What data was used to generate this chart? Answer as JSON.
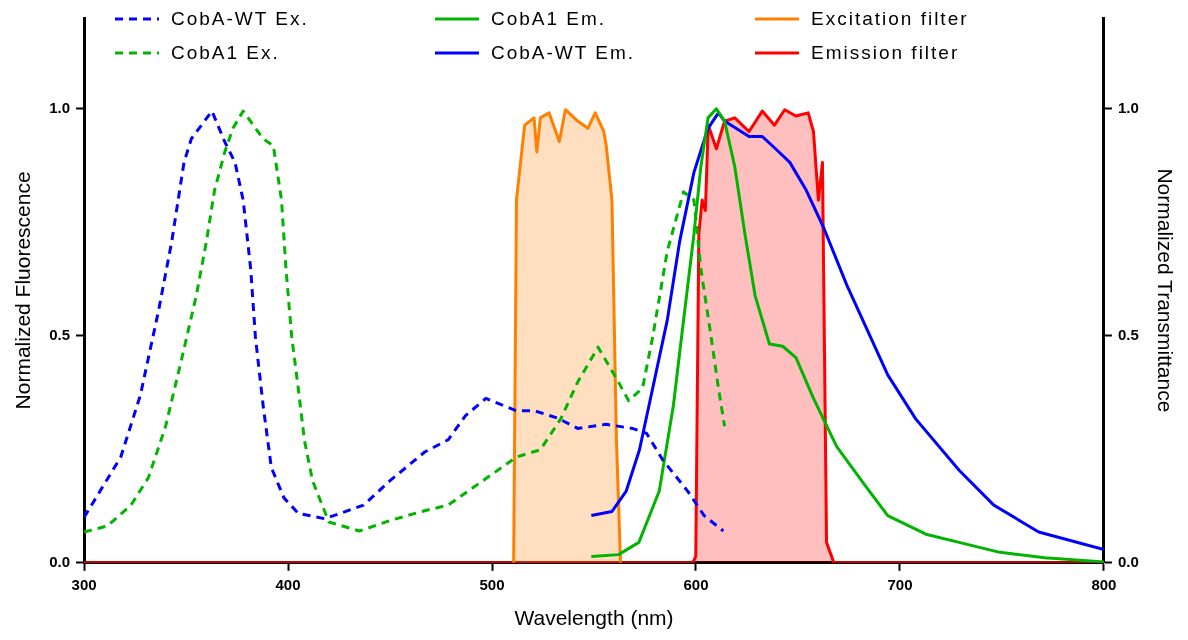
{
  "chart_data": {
    "type": "line",
    "xlabel": "Wavelength (nm)",
    "ylabel": "Normalized Fluorescence",
    "y2label": "Normalized Transmittance",
    "xlim": [
      300,
      800
    ],
    "xticks": [
      300,
      400,
      500,
      600,
      700,
      800
    ],
    "ylim": [
      0,
      1.2
    ],
    "yticks": [
      {
        "value": 0,
        "label": "0.0"
      },
      0.5,
      {
        "value": 1,
        "label": "1.0"
      }
    ],
    "y2lim": [
      0,
      1.2
    ],
    "y2ticks": [
      {
        "value": 0,
        "label": "0.0"
      },
      0.5,
      {
        "value": 1,
        "label": "1.0"
      }
    ],
    "grid": false,
    "legend": "top",
    "marker": "none",
    "series": [
      {
        "name": "CobA-WT Ex.",
        "color": "#0000ff",
        "line_style": "dashed",
        "x": [
          300,
          318,
          327.6,
          336.6,
          343,
          349,
          352.6,
          362.7,
          369,
          374,
          378,
          381.7,
          384,
          387.8,
          391.8,
          398,
          405,
          418,
          437,
          450,
          467,
          478.5,
          487,
          497,
          512,
          520.6,
          532,
          542,
          555.8,
          568.8,
          575.8,
          583.8,
          595.9,
          604,
          613.4
        ],
        "values": [
          0.1,
          0.233,
          0.369,
          0.557,
          0.708,
          0.882,
          0.934,
          0.995,
          0.927,
          0.882,
          0.799,
          0.647,
          0.498,
          0.346,
          0.21,
          0.143,
          0.109,
          0.097,
          0.127,
          0.181,
          0.244,
          0.271,
          0.324,
          0.362,
          0.335,
          0.335,
          0.319,
          0.296,
          0.305,
          0.296,
          0.285,
          0.226,
          0.158,
          0.104,
          0.07
        ]
      },
      {
        "name": "CobA1 Em.",
        "color": "#00b400",
        "line_style": "solid",
        "x": [
          548.7,
          562,
          572,
          582,
          588.9,
          593.9,
          599,
          602.4,
          605.9,
          610,
          614,
          619,
          624,
          629,
          636,
          642.5,
          649,
          657.6,
          669,
          682.6,
          694,
          712.7,
          729,
          749,
          771,
          800
        ],
        "values": [
          0.014,
          0.018,
          0.045,
          0.158,
          0.346,
          0.534,
          0.724,
          0.873,
          0.98,
          1.0,
          0.973,
          0.873,
          0.724,
          0.588,
          0.482,
          0.477,
          0.452,
          0.362,
          0.256,
          0.172,
          0.104,
          0.063,
          0.045,
          0.023,
          0.011,
          0.002
        ]
      },
      {
        "name": "Excitation filter",
        "type": "area",
        "color": "#ff8000",
        "line_style": "solid",
        "x": [
          510.6,
          512,
          516,
          520.6,
          522,
          523.7,
          528,
          533,
          536,
          542,
          547,
          550.6,
          554.8,
          556,
          558.8,
          561,
          563
        ],
        "values": [
          0,
          0.8,
          0.964,
          0.98,
          0.905,
          0.98,
          0.991,
          0.928,
          0.998,
          0.973,
          0.957,
          0.991,
          0.95,
          0.919,
          0.799,
          0.271,
          0
        ]
      },
      {
        "name": "CobA1 Ex.",
        "color": "#00b400",
        "line_style": "dashed",
        "x": [
          300,
          311.5,
          323,
          331.6,
          340,
          348,
          355,
          360,
          364,
          369,
          373,
          378,
          387.8,
          392.8,
          396.8,
          399,
          401.8,
          405,
          408,
          412,
          420,
          435,
          450,
          465.5,
          478.5,
          495.6,
          512,
          523.7,
          533.7,
          542,
          552,
          562,
          567,
          573.8,
          578.8,
          585.9,
          593.9,
          599,
          602.4,
          607.4,
          611,
          614
        ],
        "values": [
          0.068,
          0.081,
          0.127,
          0.188,
          0.301,
          0.452,
          0.588,
          0.708,
          0.821,
          0.905,
          0.957,
          0.995,
          0.934,
          0.919,
          0.799,
          0.647,
          0.498,
          0.385,
          0.271,
          0.181,
          0.09,
          0.07,
          0.093,
          0.113,
          0.127,
          0.181,
          0.233,
          0.249,
          0.317,
          0.398,
          0.475,
          0.398,
          0.357,
          0.385,
          0.498,
          0.686,
          0.817,
          0.799,
          0.647,
          0.498,
          0.385,
          0.301
        ]
      },
      {
        "name": "CobA-WT Em.",
        "color": "#0000ff",
        "line_style": "solid",
        "x": [
          548.7,
          558.8,
          565.8,
          572.3,
          578.8,
          585.9,
          592,
          599,
          605.9,
          611,
          614,
          626,
          632.5,
          639,
          646,
          654,
          662.6,
          674,
          694,
          707.7,
          729,
          746,
          768,
          800
        ],
        "values": [
          0.104,
          0.113,
          0.158,
          0.249,
          0.385,
          0.534,
          0.708,
          0.86,
          0.957,
          0.991,
          0.973,
          0.939,
          0.939,
          0.912,
          0.882,
          0.821,
          0.738,
          0.611,
          0.414,
          0.317,
          0.204,
          0.127,
          0.068,
          0.029
        ]
      },
      {
        "name": "Emission filter",
        "type": "area",
        "color": "#ff0000",
        "line_style": "solid",
        "x": [
          300,
          598.4,
          599.9,
          601.4,
          603,
          604.6,
          606,
          610,
          614,
          619,
          626,
          632.5,
          638.5,
          643.5,
          649,
          655,
          657.6,
          660,
          662,
          664,
          667.6,
          800
        ],
        "values": [
          0,
          0,
          0.014,
          0.724,
          0.799,
          0.776,
          0.964,
          0.912,
          0.973,
          0.98,
          0.95,
          0.995,
          0.964,
          0.998,
          0.984,
          0.991,
          0.95,
          0.799,
          0.882,
          0.045,
          0,
          0
        ]
      }
    ]
  }
}
